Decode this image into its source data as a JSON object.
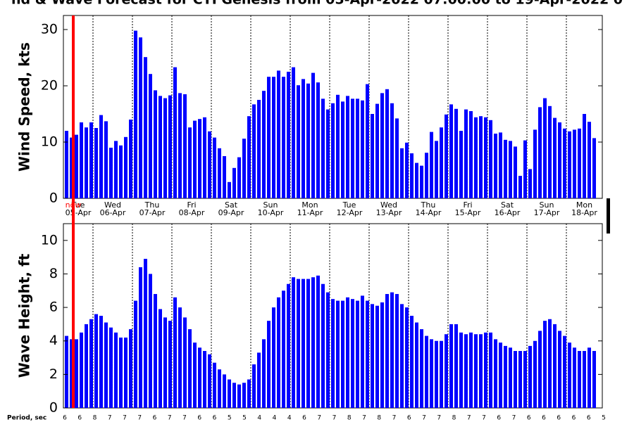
{
  "title": "nd & Wave Forecast for CTI Genesis  from 05-Apr-2022 07:00:00 to 19-Apr-2022 0",
  "now_label": "now",
  "date_axis": {
    "days": [
      "Tue",
      "Wed",
      "Thu",
      "Fri",
      "Sat",
      "Sun",
      "Mon",
      "Tue",
      "Wed",
      "Thu",
      "Fri",
      "Sat",
      "Sun",
      "Mon"
    ],
    "dates": [
      "05-Apr",
      "06-Apr",
      "07-Apr",
      "08-Apr",
      "09-Apr",
      "10-Apr",
      "11-Apr",
      "12-Apr",
      "13-Apr",
      "14-Apr",
      "15-Apr",
      "16-Apr",
      "17-Apr",
      "18-Apr"
    ]
  },
  "period": {
    "label": "Period, sec",
    "values": [
      6,
      6,
      8,
      7,
      7,
      7,
      6,
      7,
      7,
      6,
      6,
      5,
      5,
      4,
      4,
      4,
      6,
      7,
      7,
      8,
      7,
      8,
      7,
      6,
      7,
      7,
      8,
      7,
      7,
      6,
      7,
      6,
      6,
      6,
      6,
      6,
      5
    ]
  },
  "chart_data": [
    {
      "type": "bar",
      "y_label": "Wind Speed, kts",
      "color": "#0000ff",
      "ylim": [
        0,
        32.5
      ],
      "yticks": [
        0,
        10,
        20,
        30
      ],
      "values": [
        12,
        10.8,
        11.3,
        13.5,
        12.6,
        13.5,
        12.5,
        14.8,
        13.7,
        9,
        10.2,
        9.4,
        10.9,
        14,
        29.8,
        28.6,
        25.1,
        22.1,
        19.2,
        18.2,
        17.8,
        18.3,
        23.3,
        18.7,
        18.5,
        12.6,
        13.8,
        14.1,
        14.4,
        11.9,
        10.8,
        8.9,
        7.5,
        2.9,
        5.4,
        7.3,
        10.6,
        14.6,
        16.7,
        17.5,
        19.1,
        21.6,
        21.6,
        22.7,
        21.6,
        22.5,
        23.3,
        20.1,
        21.2,
        20.4,
        22.3,
        20.6,
        17.7,
        15.8,
        16.9,
        18.4,
        17.2,
        18.2,
        17.7,
        17.7,
        17.4,
        20.3,
        15,
        16.8,
        18.7,
        19.4,
        16.9,
        14.2,
        8.9,
        9.9,
        8,
        6.3,
        5.8,
        8.1,
        11.8,
        10.2,
        12.6,
        14.9,
        16.7,
        15.9,
        12,
        15.8,
        15.5,
        14.4,
        14.6,
        14.4,
        13.9,
        11.5,
        11.7,
        10.4,
        10.2,
        9.2,
        4,
        10.3,
        5.2,
        12.2,
        16.2,
        17.8,
        16.4,
        14.3,
        13.5,
        12.4,
        11.9,
        12.2,
        12.4,
        15,
        13.6,
        10.7
      ]
    },
    {
      "type": "bar",
      "y_label": "Wave Height, ft",
      "color": "#0000ff",
      "ylim": [
        0,
        11
      ],
      "yticks": [
        0,
        2,
        4,
        6,
        8,
        10
      ],
      "values": [
        4.3,
        4.1,
        4.1,
        4.5,
        5,
        5.3,
        5.6,
        5.5,
        5.1,
        4.8,
        4.5,
        4.2,
        4.2,
        4.7,
        6.4,
        8.4,
        8.9,
        8,
        6.8,
        5.9,
        5.4,
        5.2,
        6.6,
        6,
        5.4,
        4.7,
        3.9,
        3.6,
        3.4,
        3.2,
        2.7,
        2.3,
        2,
        1.7,
        1.5,
        1.4,
        1.5,
        1.7,
        2.6,
        3.3,
        4.1,
        5.2,
        6,
        6.6,
        7,
        7.4,
        7.8,
        7.7,
        7.7,
        7.7,
        7.8,
        7.9,
        7.4,
        6.9,
        6.5,
        6.4,
        6.4,
        6.6,
        6.5,
        6.4,
        6.7,
        6.4,
        6.2,
        6.1,
        6.3,
        6.8,
        6.9,
        6.8,
        6.2,
        6,
        5.5,
        5.1,
        4.7,
        4.3,
        4.1,
        4,
        4,
        4.4,
        5,
        5,
        4.5,
        4.4,
        4.5,
        4.4,
        4.4,
        4.5,
        4.5,
        4.1,
        3.9,
        3.7,
        3.6,
        3.4,
        3.4,
        3.4,
        3.7,
        4,
        4.6,
        5.2,
        5.3,
        5,
        4.6,
        4.3,
        3.9,
        3.6,
        3.4,
        3.4,
        3.6,
        3.4
      ]
    }
  ]
}
